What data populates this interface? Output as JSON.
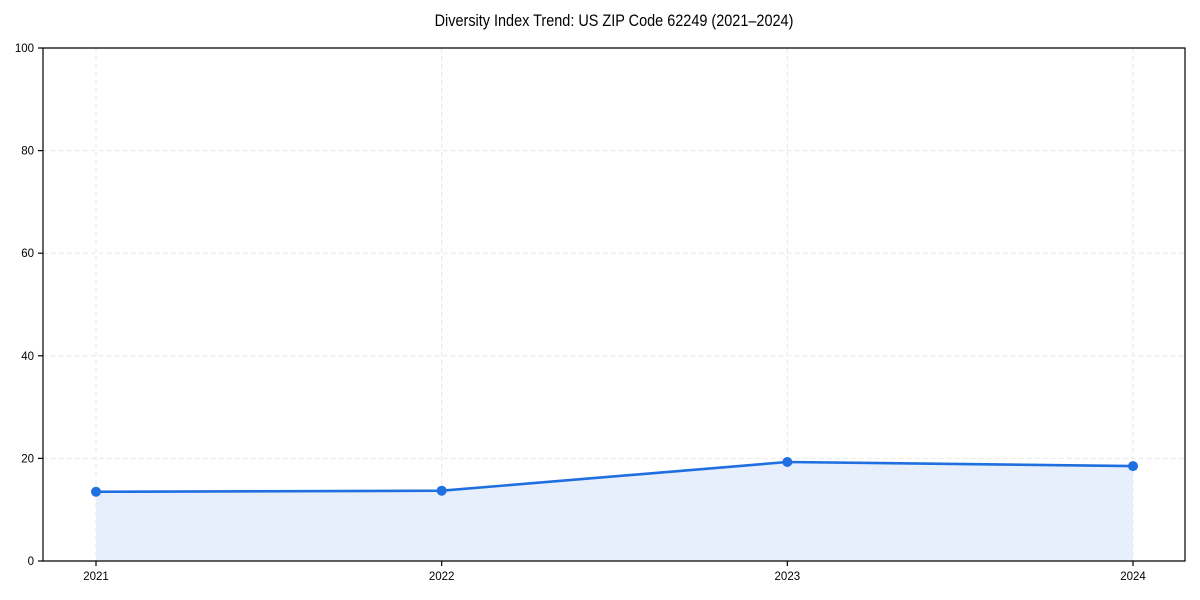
{
  "chart_data": {
    "type": "area",
    "title": "Diversity Index Trend: US ZIP Code 62249 (2021–2024)",
    "x": [
      "2021",
      "2022",
      "2023",
      "2024"
    ],
    "series": [
      {
        "name": "Diversity Index",
        "values": [
          13.5,
          13.7,
          19.3,
          18.5
        ]
      }
    ],
    "xlabel": "",
    "ylabel": "",
    "ylim": [
      0,
      100
    ],
    "yticks": [
      0,
      20,
      40,
      60,
      80,
      100
    ],
    "grid": "dashed, both axes",
    "legend": "none",
    "colors": {
      "line": "#1f6fe0",
      "marker": "#1f6fe0",
      "area_fill": "#e8effc",
      "grid": "#e7e7e7",
      "spine": "#000000",
      "background": "#ffffff",
      "text": "#000000"
    }
  }
}
